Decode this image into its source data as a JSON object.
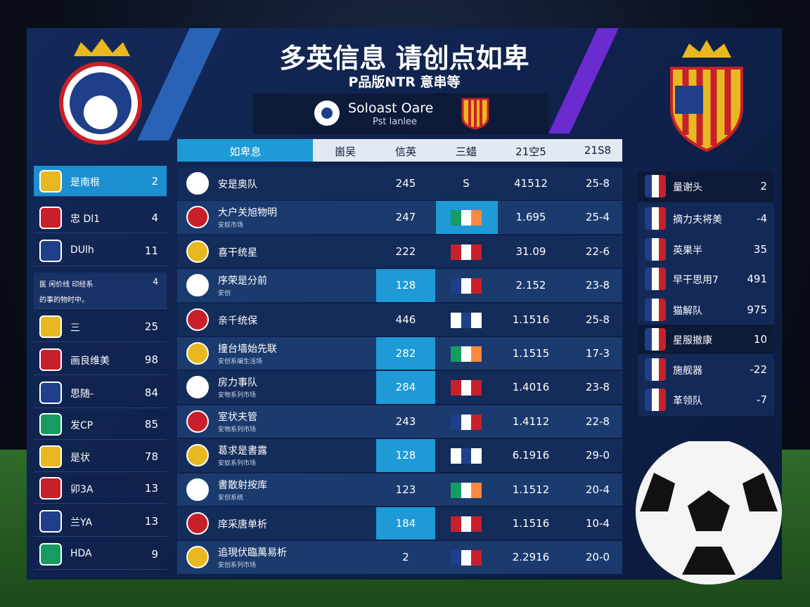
{
  "header": {
    "title": "多英信息 请创点如卑",
    "subtitle": "P品版NTR 意串等",
    "badge_title": "Soloast Oare",
    "badge_subtitle": "Pst lanlee"
  },
  "table": {
    "headers": [
      "如卑息",
      "崮吴",
      "信英",
      "三蜡",
      "21空5",
      "21S8"
    ],
    "rows": [
      {
        "name": "安是奥队",
        "value": 245,
        "code": "S",
        "rate": "41512",
        "score": "25-8"
      },
      {
        "name": "大户关旭物明",
        "sub": "安奴市场",
        "value": 247,
        "rate": "1.695",
        "score": "25-4"
      },
      {
        "name": "喜干统星",
        "value": 222,
        "rate": "31.09",
        "score": "22-6"
      },
      {
        "name": "序荣是分前",
        "sub": "安创",
        "value": 128,
        "rate": "2.152",
        "score": "23-8"
      },
      {
        "name": "亲千统保",
        "value": 446,
        "rate": "1.1516",
        "score": "25-8"
      },
      {
        "name": "撞台墙始先联",
        "sub": "安创系编生活场",
        "value": 282,
        "rate": "1.1515",
        "score": "17-3"
      },
      {
        "name": "房力事队",
        "sub": "安物系列市场",
        "value": 284,
        "rate": "1.4016",
        "score": "23-8"
      },
      {
        "name": "室状夫管",
        "sub": "安物系列市场",
        "value": 243,
        "rate": "1.4112",
        "score": "22-8"
      },
      {
        "name": "葛求是書露",
        "sub": "安奴系列市场",
        "value": 128,
        "rate": "6.1916",
        "score": "29-0"
      },
      {
        "name": "書散射按库",
        "sub": "安创系统",
        "value": 123,
        "rate": "1.1512",
        "score": "20-4"
      },
      {
        "name": "庠采唐单析",
        "value": 184,
        "rate": "1.1516",
        "score": "10-4"
      },
      {
        "name": "追現伏臨萬易析",
        "sub": "安创系列市场",
        "value": 2,
        "rate": "2.2916",
        "score": "20-0"
      }
    ]
  },
  "left_list": [
    {
      "name": "是南根",
      "value": 2
    },
    {
      "name": "忠 Dl1",
      "value": 4
    },
    {
      "name": "DUlh",
      "value": 11
    },
    {
      "note": [
        "医 闲价线 印经系",
        "的事的物时中。"
      ],
      "value": 4
    },
    {
      "name": "三",
      "value": 25
    },
    {
      "name": "画良维美",
      "value": 98
    },
    {
      "name": "思随-",
      "value": 84
    },
    {
      "name": "发CP",
      "value": 85
    },
    {
      "name": "是状",
      "value": 78
    },
    {
      "name": "卯3A",
      "value": 13
    },
    {
      "name": "兰YA",
      "value": 13
    },
    {
      "name": "HDA",
      "value": 9
    }
  ],
  "right_list": [
    {
      "name": "量谢头",
      "value": 2
    },
    {
      "name": "摘力夫将美",
      "value": -4
    },
    {
      "name": "英果半",
      "value": 35
    },
    {
      "name": "早干思用7",
      "value": 491
    },
    {
      "name": "猫解队",
      "value": 975
    },
    {
      "name": "星服撤康",
      "value": 10
    },
    {
      "name": "施舰器",
      "value": -22
    },
    {
      "name": "革领队",
      "value": -7
    }
  ]
}
